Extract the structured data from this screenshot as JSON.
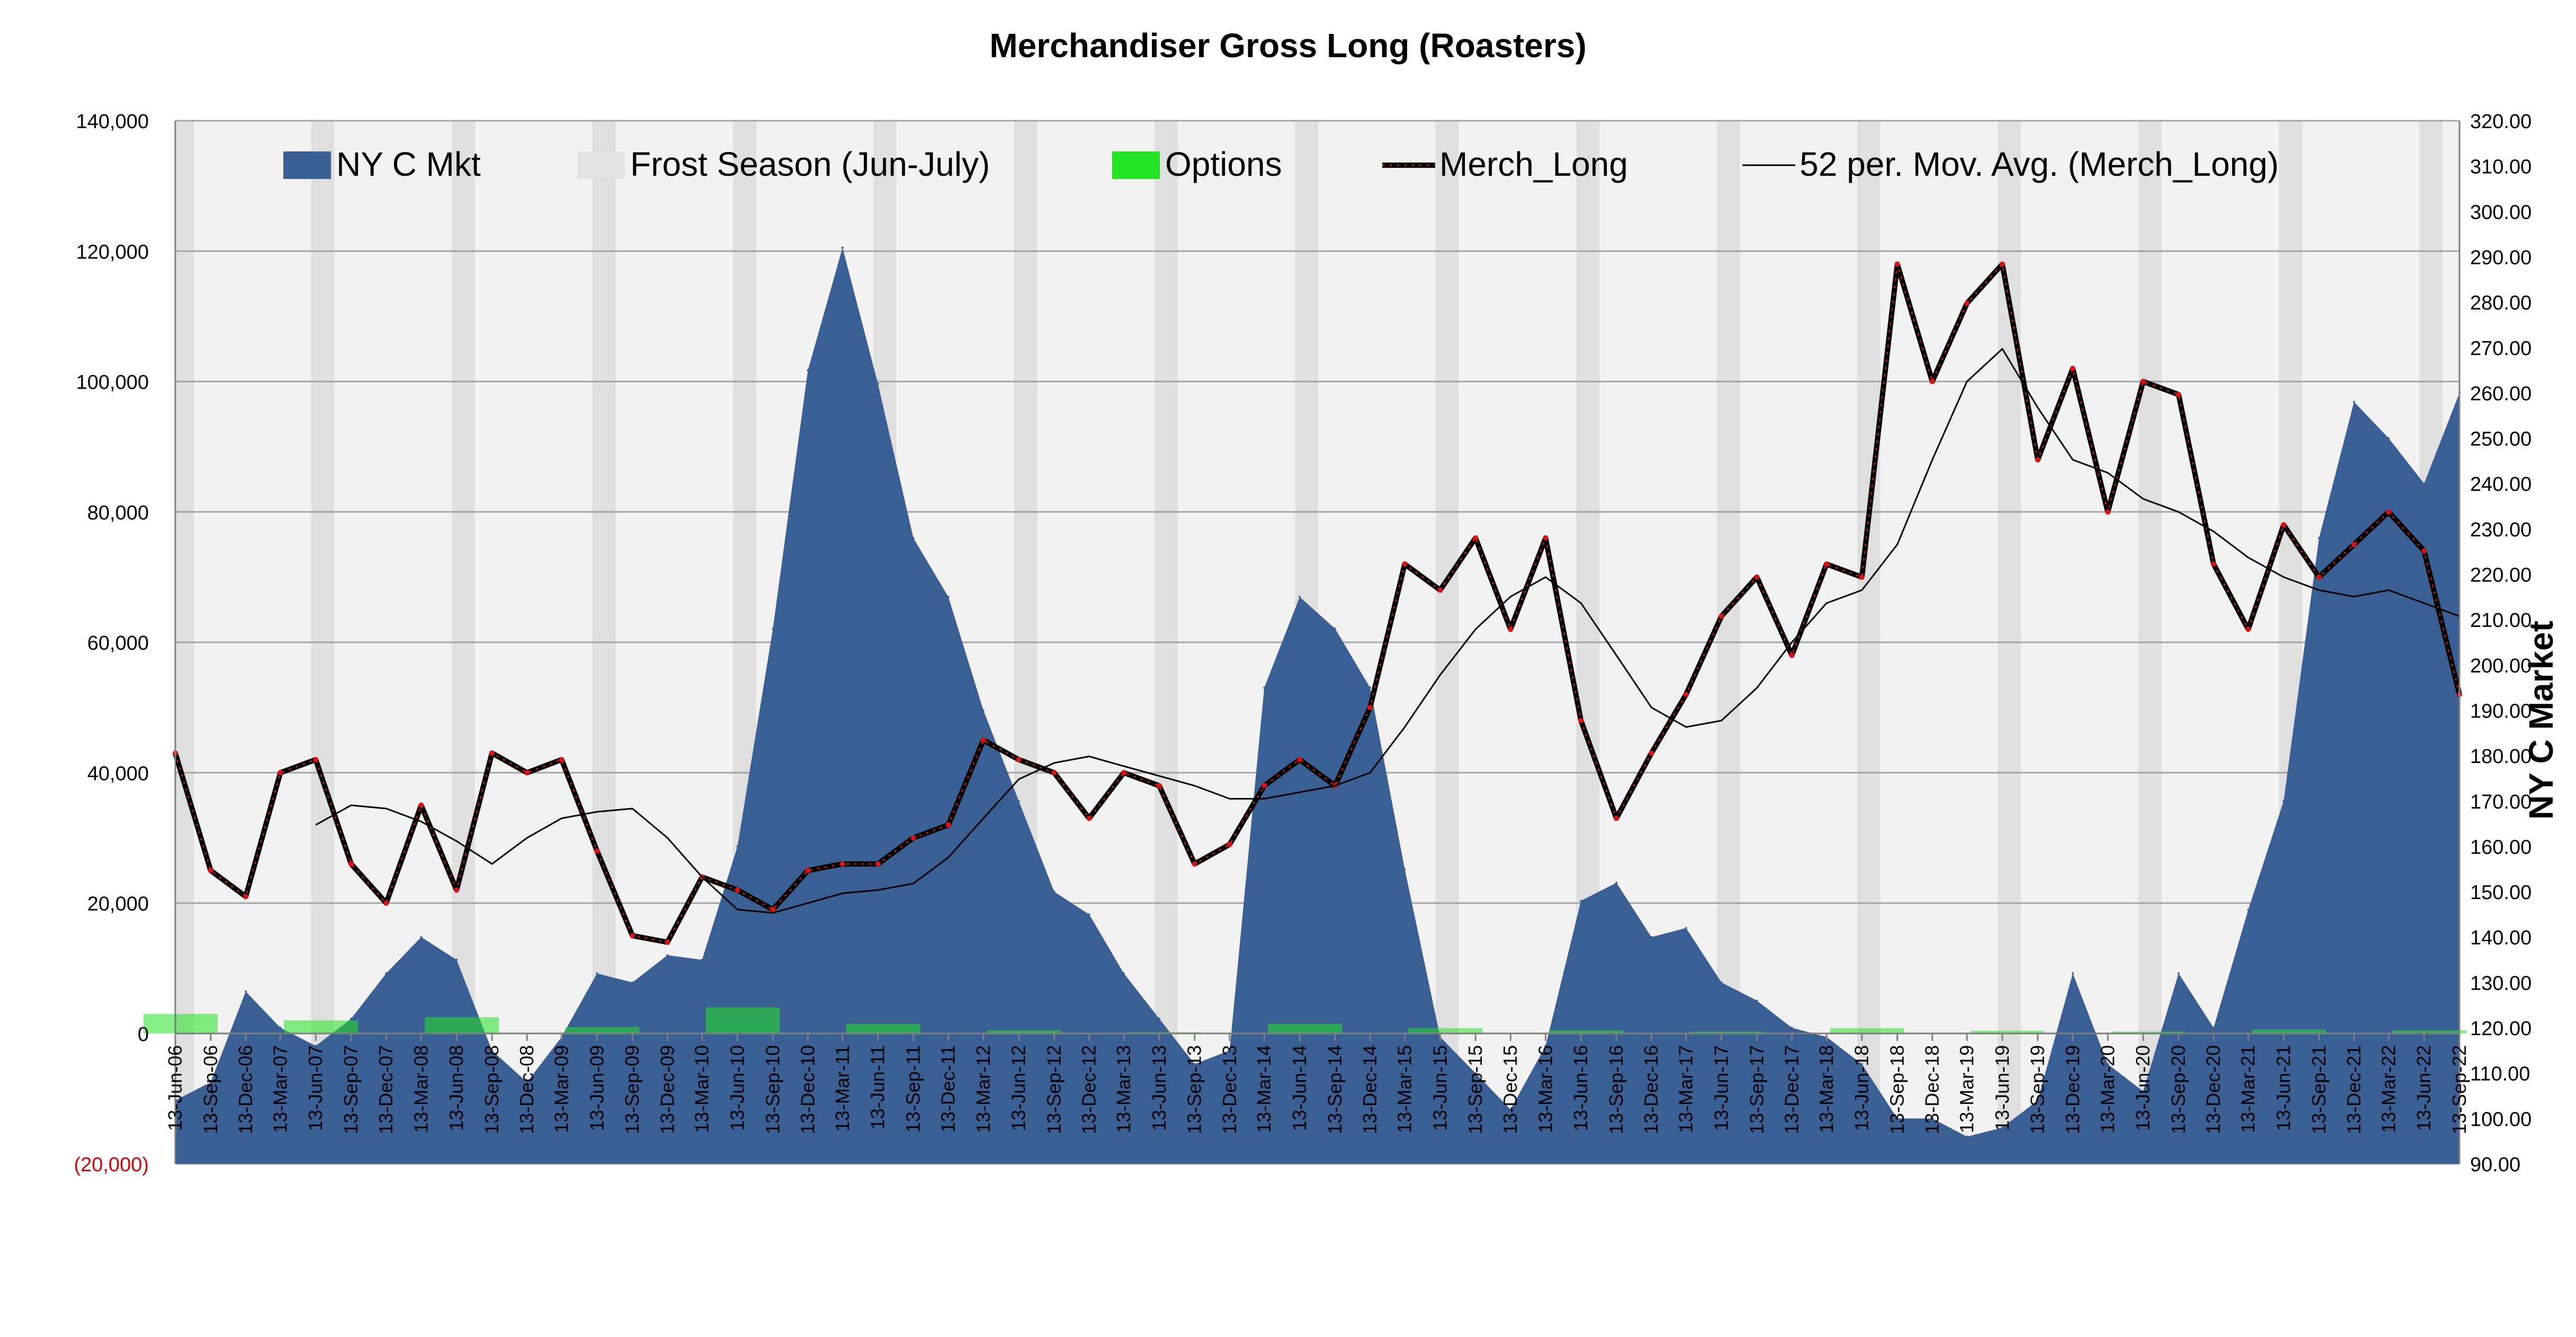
{
  "chart_data": {
    "type": "area",
    "title": "Merchandiser  Gross Long (Roasters)",
    "ylabel": "",
    "y2label": "NY C Market",
    "ylim": [
      -20000,
      140000
    ],
    "y2lim": [
      90,
      320
    ],
    "yticks": [
      -20000,
      0,
      20000,
      40000,
      60000,
      80000,
      100000,
      120000,
      140000
    ],
    "ytick_labels": [
      "(20,000)",
      "0",
      "20,000",
      "40,000",
      "60,000",
      "80,000",
      "100,000",
      "120,000",
      "140,000"
    ],
    "y2ticks": [
      90,
      100,
      110,
      120,
      130,
      140,
      150,
      160,
      170,
      180,
      190,
      200,
      210,
      220,
      230,
      240,
      250,
      260,
      270,
      280,
      290,
      300,
      310,
      320
    ],
    "y2tick_labels": [
      "90.00",
      "100.00",
      "110.00",
      "120.00",
      "130.00",
      "140.00",
      "150.00",
      "160.00",
      "170.00",
      "180.00",
      "190.00",
      "200.00",
      "210.00",
      "220.00",
      "230.00",
      "240.00",
      "250.00",
      "260.00",
      "270.00",
      "280.00",
      "290.00",
      "300.00",
      "310.00",
      "320.00"
    ],
    "xlim": [
      "2006-06-13",
      "2022-09-13"
    ],
    "xtick_labels": [
      "13-Jun-06",
      "13-Sep-06",
      "13-Dec-06",
      "13-Mar-07",
      "13-Jun-07",
      "13-Sep-07",
      "13-Dec-07",
      "13-Mar-08",
      "13-Jun-08",
      "13-Sep-08",
      "13-Dec-08",
      "13-Mar-09",
      "13-Jun-09",
      "13-Sep-09",
      "13-Dec-09",
      "13-Mar-10",
      "13-Jun-10",
      "13-Sep-10",
      "13-Dec-10",
      "13-Mar-11",
      "13-Jun-11",
      "13-Sep-11",
      "13-Dec-11",
      "13-Mar-12",
      "13-Jun-12",
      "13-Sep-12",
      "13-Dec-12",
      "13-Mar-13",
      "13-Jun-13",
      "13-Sep-13",
      "13-Dec-13",
      "13-Mar-14",
      "13-Jun-14",
      "13-Sep-14",
      "13-Dec-14",
      "13-Mar-15",
      "13-Jun-15",
      "13-Sep-15",
      "13-Dec-15",
      "13-Mar-16",
      "13-Jun-16",
      "13-Sep-16",
      "13-Dec-16",
      "13-Mar-17",
      "13-Jun-17",
      "13-Sep-17",
      "13-Dec-17",
      "13-Mar-18",
      "13-Jun-18",
      "13-Sep-18",
      "13-Dec-18",
      "13-Mar-19",
      "13-Jun-19",
      "13-Sep-19",
      "13-Dec-19",
      "13-Mar-20",
      "13-Jun-20",
      "13-Sep-20",
      "13-Dec-20",
      "13-Mar-21",
      "13-Jun-21",
      "13-Sep-21",
      "13-Dec-21",
      "13-Mar-22",
      "13-Jun-22",
      "13-Sep-22"
    ],
    "grid": true,
    "legend_position": "top",
    "legend": [
      {
        "name": "NY C Mkt",
        "kind": "area",
        "color": "#3a5f94"
      },
      {
        "name": "Frost Season (Jun-July)",
        "kind": "band",
        "color": "#e3e3e3"
      },
      {
        "name": "Options",
        "kind": "area",
        "color": "#22e422"
      },
      {
        "name": "Merch_Long",
        "kind": "line",
        "color": "#000000"
      },
      {
        "name": "52 per. Mov. Avg. (Merch_Long)",
        "kind": "thin-line",
        "color": "#000000"
      }
    ],
    "frost_season_years": [
      2006,
      2007,
      2008,
      2009,
      2010,
      2011,
      2012,
      2013,
      2014,
      2015,
      2016,
      2017,
      2018,
      2019,
      2020,
      2021,
      2022
    ],
    "series": [
      {
        "name": "NY C Mkt",
        "axis": "right",
        "color": "#3a5f94",
        "x": [
          "2006-06-13",
          "2006-09-13",
          "2006-12-13",
          "2007-03-13",
          "2007-06-13",
          "2007-09-13",
          "2007-12-13",
          "2008-03-13",
          "2008-06-13",
          "2008-09-13",
          "2008-12-13",
          "2009-03-13",
          "2009-06-13",
          "2009-09-13",
          "2009-12-13",
          "2010-03-13",
          "2010-06-13",
          "2010-09-13",
          "2010-12-13",
          "2011-03-13",
          "2011-06-13",
          "2011-09-13",
          "2011-12-13",
          "2012-03-13",
          "2012-06-13",
          "2012-09-13",
          "2012-12-13",
          "2013-03-13",
          "2013-06-13",
          "2013-09-13",
          "2013-12-13",
          "2014-03-13",
          "2014-06-13",
          "2014-09-13",
          "2014-12-13",
          "2015-03-13",
          "2015-06-13",
          "2015-09-13",
          "2015-12-13",
          "2016-03-13",
          "2016-06-13",
          "2016-09-13",
          "2016-12-13",
          "2017-03-13",
          "2017-06-13",
          "2017-09-13",
          "2017-12-13",
          "2018-03-13",
          "2018-06-13",
          "2018-09-13",
          "2018-12-13",
          "2019-03-13",
          "2019-06-13",
          "2019-09-13",
          "2019-12-13",
          "2020-03-13",
          "2020-06-13",
          "2020-09-13",
          "2020-12-13",
          "2021-03-13",
          "2021-06-13",
          "2021-09-13",
          "2021-12-13",
          "2022-03-13",
          "2022-06-13",
          "2022-09-13"
        ],
        "values": [
          104,
          108,
          128,
          120,
          116,
          122,
          132,
          140,
          135,
          115,
          108,
          118,
          132,
          130,
          136,
          135,
          160,
          208,
          265,
          292,
          262,
          228,
          215,
          190,
          170,
          150,
          145,
          132,
          122,
          112,
          115,
          195,
          215,
          208,
          195,
          155,
          118,
          110,
          102,
          116,
          148,
          152,
          140,
          142,
          130,
          126,
          120,
          118,
          112,
          100,
          100,
          96,
          98,
          104,
          132,
          112,
          106,
          132,
          120,
          146,
          170,
          228,
          258,
          250,
          240,
          260
        ]
      },
      {
        "name": "Merch_Long",
        "axis": "left",
        "color": "#000000",
        "x": [
          "2006-06-13",
          "2006-09-13",
          "2006-12-13",
          "2007-03-13",
          "2007-06-13",
          "2007-09-13",
          "2007-12-13",
          "2008-03-13",
          "2008-06-13",
          "2008-09-13",
          "2008-12-13",
          "2009-03-13",
          "2009-06-13",
          "2009-09-13",
          "2009-12-13",
          "2010-03-13",
          "2010-06-13",
          "2010-09-13",
          "2010-12-13",
          "2011-03-13",
          "2011-06-13",
          "2011-09-13",
          "2011-12-13",
          "2012-03-13",
          "2012-06-13",
          "2012-09-13",
          "2012-12-13",
          "2013-03-13",
          "2013-06-13",
          "2013-09-13",
          "2013-12-13",
          "2014-03-13",
          "2014-06-13",
          "2014-09-13",
          "2014-12-13",
          "2015-03-13",
          "2015-06-13",
          "2015-09-13",
          "2015-12-13",
          "2016-03-13",
          "2016-06-13",
          "2016-09-13",
          "2016-12-13",
          "2017-03-13",
          "2017-06-13",
          "2017-09-13",
          "2017-12-13",
          "2018-03-13",
          "2018-06-13",
          "2018-09-13",
          "2018-12-13",
          "2019-03-13",
          "2019-06-13",
          "2019-09-13",
          "2019-12-13",
          "2020-03-13",
          "2020-06-13",
          "2020-09-13",
          "2020-12-13",
          "2021-03-13",
          "2021-06-13",
          "2021-09-13",
          "2021-12-13",
          "2022-03-13",
          "2022-06-13",
          "2022-09-13"
        ],
        "values": [
          43000,
          25000,
          21000,
          40000,
          42000,
          26000,
          20000,
          35000,
          22000,
          43000,
          40000,
          42000,
          28000,
          15000,
          14000,
          24000,
          22000,
          19000,
          25000,
          26000,
          26000,
          30000,
          32000,
          45000,
          42000,
          40000,
          33000,
          40000,
          38000,
          26000,
          29000,
          38000,
          42000,
          38000,
          50000,
          72000,
          68000,
          76000,
          62000,
          76000,
          48000,
          33000,
          43000,
          52000,
          64000,
          70000,
          58000,
          72000,
          70000,
          118000,
          100000,
          112000,
          118000,
          88000,
          102000,
          80000,
          100000,
          98000,
          72000,
          62000,
          78000,
          70000,
          75000,
          80000,
          74000,
          52000
        ]
      },
      {
        "name": "52 per. Mov. Avg. (Merch_Long)",
        "axis": "left",
        "color": "#000000",
        "x": [
          "2007-06-13",
          "2007-09-13",
          "2007-12-13",
          "2008-03-13",
          "2008-06-13",
          "2008-09-13",
          "2008-12-13",
          "2009-03-13",
          "2009-06-13",
          "2009-09-13",
          "2009-12-13",
          "2010-03-13",
          "2010-06-13",
          "2010-09-13",
          "2010-12-13",
          "2011-03-13",
          "2011-06-13",
          "2011-09-13",
          "2011-12-13",
          "2012-03-13",
          "2012-06-13",
          "2012-09-13",
          "2012-12-13",
          "2013-03-13",
          "2013-06-13",
          "2013-09-13",
          "2013-12-13",
          "2014-03-13",
          "2014-06-13",
          "2014-09-13",
          "2014-12-13",
          "2015-03-13",
          "2015-06-13",
          "2015-09-13",
          "2015-12-13",
          "2016-03-13",
          "2016-06-13",
          "2016-09-13",
          "2016-12-13",
          "2017-03-13",
          "2017-06-13",
          "2017-09-13",
          "2017-12-13",
          "2018-03-13",
          "2018-06-13",
          "2018-09-13",
          "2018-12-13",
          "2019-03-13",
          "2019-06-13",
          "2019-09-13",
          "2019-12-13",
          "2020-03-13",
          "2020-06-13",
          "2020-09-13",
          "2020-12-13",
          "2021-03-13",
          "2021-06-13",
          "2021-09-13",
          "2021-12-13",
          "2022-03-13",
          "2022-06-13",
          "2022-09-13"
        ],
        "values": [
          32000,
          35000,
          34500,
          32500,
          29500,
          26000,
          30000,
          33000,
          34000,
          34500,
          30000,
          24000,
          19000,
          18500,
          20000,
          21500,
          22000,
          23000,
          27000,
          33000,
          39000,
          41500,
          42500,
          41000,
          39500,
          38000,
          36000,
          36000,
          37000,
          38000,
          40000,
          47000,
          55000,
          62000,
          67000,
          70000,
          66000,
          58000,
          50000,
          47000,
          48000,
          53000,
          60000,
          66000,
          68000,
          75000,
          88000,
          100000,
          105000,
          96000,
          88000,
          86000,
          82000,
          80000,
          77000,
          73000,
          70000,
          68000,
          67000,
          68000,
          66000,
          64000
        ]
      },
      {
        "name": "Options",
        "axis": "left",
        "color": "#22e422",
        "x": [
          "2006-06-13",
          "2007-06-13",
          "2008-06-13",
          "2009-06-13",
          "2010-06-13",
          "2011-06-13",
          "2012-06-13",
          "2013-06-13",
          "2014-06-13",
          "2015-06-13",
          "2016-06-13",
          "2017-06-13",
          "2018-06-13",
          "2019-06-13",
          "2020-06-13",
          "2021-06-13",
          "2022-06-13"
        ],
        "values": [
          3000,
          2000,
          2500,
          1000,
          4000,
          1500,
          500,
          200,
          1500,
          800,
          500,
          300,
          800,
          400,
          300,
          600,
          500
        ]
      }
    ]
  }
}
